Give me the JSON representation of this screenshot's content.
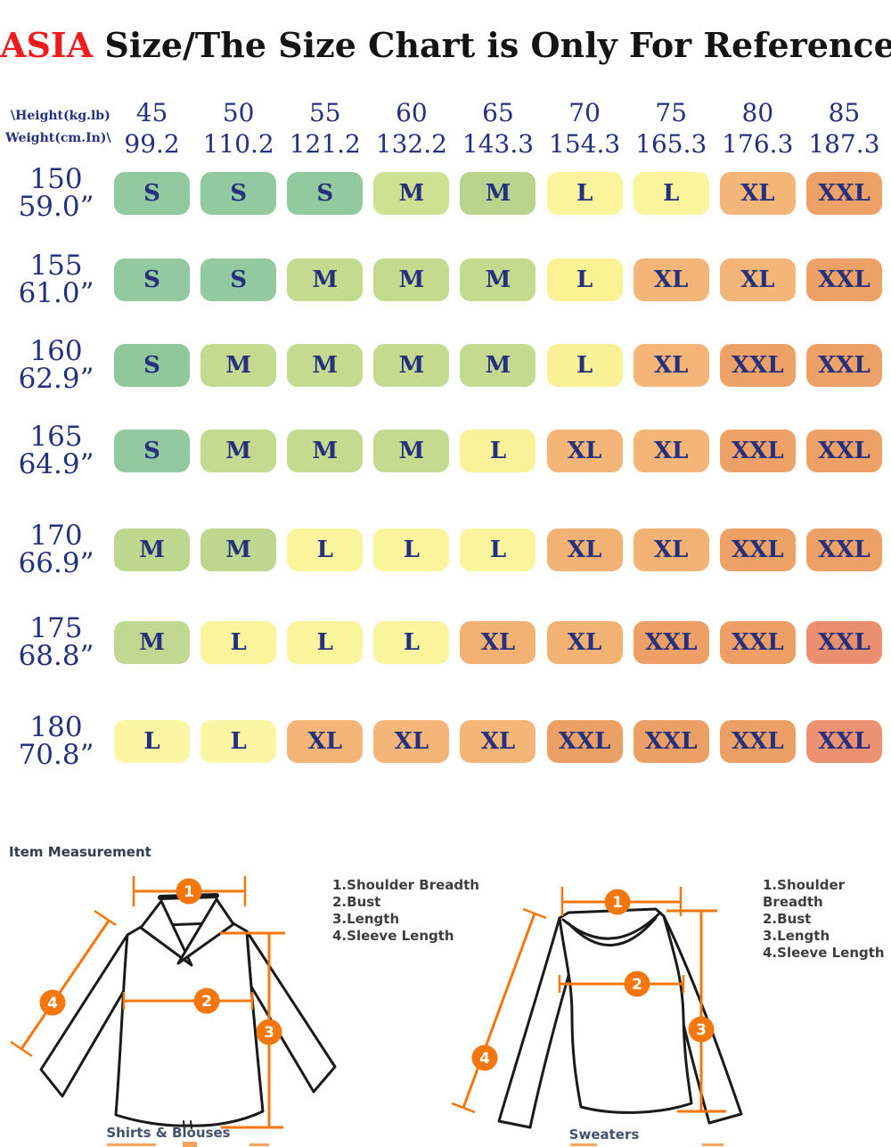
{
  "title": {
    "accent": "ASIA",
    "rest": " Size/The Size Chart is Only For Reference"
  },
  "colors": {
    "navy_text": "#25307e",
    "title_red": "#ee1c1c",
    "measure_orange": "#f4770e",
    "size_s_green": "#92c99e",
    "size_m_green": "#c4da8f",
    "size_l_yellow": "#faf49c",
    "size_xl_orange": "#f3b678",
    "size_xxl_orange": "#eda167",
    "size_xxl_hot": "#ec9273"
  },
  "size_chart": {
    "corner": {
      "line1": "\\Height(kg.lb)",
      "line2": "Weight(cm.In)\\"
    },
    "columns": [
      {
        "kg": "45",
        "lb": "99.2"
      },
      {
        "kg": "50",
        "lb": "110.2"
      },
      {
        "kg": "55",
        "lb": "121.2"
      },
      {
        "kg": "60",
        "lb": "132.2"
      },
      {
        "kg": "65",
        "lb": "143.3"
      },
      {
        "kg": "70",
        "lb": "154.3"
      },
      {
        "kg": "75",
        "lb": "165.3"
      },
      {
        "kg": "80",
        "lb": "176.3"
      },
      {
        "kg": "85",
        "lb": "187.3"
      }
    ],
    "rows": [
      {
        "height_cm": "150",
        "height_in": "59.0”",
        "cells": [
          {
            "size": "S",
            "color": "#92c99e"
          },
          {
            "size": "S",
            "color": "#92c99e"
          },
          {
            "size": "S",
            "color": "#92c99e"
          },
          {
            "size": "M",
            "color": "#cfe093"
          },
          {
            "size": "M",
            "color": "#b9d48d"
          },
          {
            "size": "L",
            "color": "#faf49c"
          },
          {
            "size": "L",
            "color": "#faf49c"
          },
          {
            "size": "XL",
            "color": "#f3b678"
          },
          {
            "size": "XXL",
            "color": "#eda167"
          }
        ]
      },
      {
        "height_cm": "155",
        "height_in": "61.0”",
        "cells": [
          {
            "size": "S",
            "color": "#92c99e"
          },
          {
            "size": "S",
            "color": "#92c99e"
          },
          {
            "size": "M",
            "color": "#c4da8f"
          },
          {
            "size": "M",
            "color": "#c4da8f"
          },
          {
            "size": "M",
            "color": "#c4da8f"
          },
          {
            "size": "L",
            "color": "#faf293"
          },
          {
            "size": "XL",
            "color": "#f3b678"
          },
          {
            "size": "XL",
            "color": "#f3b678"
          },
          {
            "size": "XXL",
            "color": "#eda167"
          }
        ]
      },
      {
        "height_cm": "160",
        "height_in": "62.9”",
        "cells": [
          {
            "size": "S",
            "color": "#8fc89b"
          },
          {
            "size": "M",
            "color": "#c4da8f"
          },
          {
            "size": "M",
            "color": "#c4da8f"
          },
          {
            "size": "M",
            "color": "#c4da8f"
          },
          {
            "size": "M",
            "color": "#c4da8f"
          },
          {
            "size": "L",
            "color": "#faf096"
          },
          {
            "size": "XL",
            "color": "#f3b678"
          },
          {
            "size": "XXL",
            "color": "#eda167"
          },
          {
            "size": "XXL",
            "color": "#eda167"
          }
        ]
      },
      {
        "height_cm": "165",
        "height_in": "64.9”",
        "cells": [
          {
            "size": "S",
            "color": "#92c99e"
          },
          {
            "size": "M",
            "color": "#c4da8f"
          },
          {
            "size": "M",
            "color": "#c4da8f"
          },
          {
            "size": "M",
            "color": "#c4da8f"
          },
          {
            "size": "L",
            "color": "#faf298"
          },
          {
            "size": "XL",
            "color": "#f3b678"
          },
          {
            "size": "XL",
            "color": "#f3b678"
          },
          {
            "size": "XXL",
            "color": "#eda167"
          },
          {
            "size": "XXL",
            "color": "#eda167"
          }
        ]
      },
      {
        "height_cm": "170",
        "height_in": "66.9”",
        "cells": [
          {
            "size": "M",
            "color": "#bed78e"
          },
          {
            "size": "M",
            "color": "#bed78e"
          },
          {
            "size": "L",
            "color": "#faf49c"
          },
          {
            "size": "L",
            "color": "#faf49c"
          },
          {
            "size": "L",
            "color": "#faf49c"
          },
          {
            "size": "XL",
            "color": "#f2b273"
          },
          {
            "size": "XL",
            "color": "#f2b273"
          },
          {
            "size": "XXL",
            "color": "#eda167"
          },
          {
            "size": "XXL",
            "color": "#eda167"
          }
        ]
      },
      {
        "height_cm": "175",
        "height_in": "68.8”",
        "cells": [
          {
            "size": "M",
            "color": "#c0d88f"
          },
          {
            "size": "L",
            "color": "#faf49c"
          },
          {
            "size": "L",
            "color": "#faf49c"
          },
          {
            "size": "L",
            "color": "#faf49c"
          },
          {
            "size": "XL",
            "color": "#f2b273"
          },
          {
            "size": "XL",
            "color": "#f2b273"
          },
          {
            "size": "XXL",
            "color": "#ed9f66"
          },
          {
            "size": "XXL",
            "color": "#ed9f66"
          },
          {
            "size": "XXL",
            "color": "#ea8f70"
          }
        ]
      },
      {
        "height_cm": "180",
        "height_in": "70.8”",
        "cells": [
          {
            "size": "L",
            "color": "#faf6a3"
          },
          {
            "size": "L",
            "color": "#faf6a3"
          },
          {
            "size": "XL",
            "color": "#f3b678"
          },
          {
            "size": "XL",
            "color": "#f3b678"
          },
          {
            "size": "XL",
            "color": "#f3b678"
          },
          {
            "size": "XXL",
            "color": "#eda066"
          },
          {
            "size": "XXL",
            "color": "#eda066"
          },
          {
            "size": "XXL",
            "color": "#eda066"
          },
          {
            "size": "XXL",
            "color": "#ec9273"
          }
        ]
      }
    ]
  },
  "measurement": {
    "heading": "Item Measurement",
    "legend": [
      "1.Shoulder Breadth",
      "2.Bust",
      "3.Length",
      "4.Sleeve Length"
    ],
    "markers": [
      "1",
      "2",
      "3",
      "4"
    ],
    "diagrams": [
      {
        "label": "Shirts & Blouses"
      },
      {
        "label": "Sweaters"
      }
    ]
  }
}
